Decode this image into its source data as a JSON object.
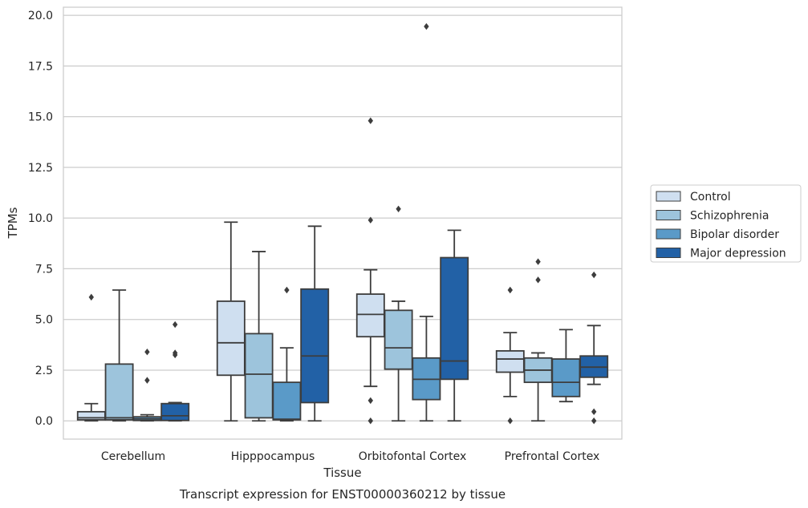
{
  "chart_data": {
    "type": "boxplot",
    "title": "Transcript expression for ENST00000360212 by tissue",
    "xlabel": "Tissue",
    "ylabel": "TPMs",
    "ylim": [
      -0.9,
      20.4
    ],
    "yticks": [
      "0.0",
      "2.5",
      "5.0",
      "7.5",
      "10.0",
      "12.5",
      "15.0",
      "17.5",
      "20.0"
    ],
    "ytick_values": [
      0,
      2.5,
      5,
      7.5,
      10,
      12.5,
      15,
      17.5,
      20
    ],
    "grid": "horizontal",
    "legend_position": "right",
    "categories": [
      "Cerebellum",
      "Hipppocampus",
      "Orbitofontal Cortex",
      "Prefrontal Cortex"
    ],
    "series": [
      {
        "name": "Control",
        "color": "#cfdff0",
        "boxes": [
          {
            "whislo": 0.0,
            "q1": 0.05,
            "med": 0.15,
            "q3": 0.45,
            "whishi": 0.85,
            "fliers": [
              6.1
            ]
          },
          {
            "whislo": 0.0,
            "q1": 2.25,
            "med": 3.85,
            "q3": 5.9,
            "whishi": 9.8,
            "fliers": []
          },
          {
            "whislo": 1.7,
            "q1": 4.15,
            "med": 5.25,
            "q3": 6.25,
            "whishi": 7.45,
            "fliers": [
              14.8,
              9.9,
              1.0,
              0.0
            ]
          },
          {
            "whislo": 1.2,
            "q1": 2.4,
            "med": 3.05,
            "q3": 3.45,
            "whishi": 4.35,
            "fliers": [
              6.45,
              0.0
            ]
          }
        ]
      },
      {
        "name": "Schizophrenia",
        "color": "#9dc4dc",
        "boxes": [
          {
            "whislo": 0.0,
            "q1": 0.05,
            "med": 0.15,
            "q3": 2.8,
            "whishi": 6.45,
            "fliers": []
          },
          {
            "whislo": 0.0,
            "q1": 0.15,
            "med": 2.3,
            "q3": 4.3,
            "whishi": 8.35,
            "fliers": []
          },
          {
            "whislo": 0.0,
            "q1": 2.55,
            "med": 3.6,
            "q3": 5.45,
            "whishi": 5.9,
            "fliers": [
              10.45
            ]
          },
          {
            "whislo": 0.0,
            "q1": 1.9,
            "med": 2.5,
            "q3": 3.1,
            "whishi": 3.35,
            "fliers": [
              7.85,
              6.95
            ]
          }
        ]
      },
      {
        "name": "Bipolar disorder",
        "color": "#5a9ac8",
        "boxes": [
          {
            "whislo": 0.0,
            "q1": 0.02,
            "med": 0.1,
            "q3": 0.2,
            "whishi": 0.3,
            "fliers": [
              3.4,
              2.0
            ]
          },
          {
            "whislo": 0.0,
            "q1": 0.05,
            "med": 0.08,
            "q3": 1.9,
            "whishi": 3.6,
            "fliers": [
              6.45
            ]
          },
          {
            "whislo": 0.0,
            "q1": 1.05,
            "med": 2.05,
            "q3": 3.1,
            "whishi": 5.15,
            "fliers": [
              19.45
            ]
          },
          {
            "whislo": 0.95,
            "q1": 1.2,
            "med": 1.9,
            "q3": 3.05,
            "whishi": 4.5,
            "fliers": []
          }
        ]
      },
      {
        "name": "Major depression",
        "color": "#2261a6",
        "boxes": [
          {
            "whislo": 0.0,
            "q1": 0.02,
            "med": 0.25,
            "q3": 0.85,
            "whishi": 0.9,
            "fliers": [
              4.75,
              3.35,
              3.25
            ]
          },
          {
            "whislo": 0.0,
            "q1": 0.9,
            "med": 3.2,
            "q3": 6.5,
            "whishi": 9.6,
            "fliers": []
          },
          {
            "whislo": 0.0,
            "q1": 2.05,
            "med": 2.95,
            "q3": 8.05,
            "whishi": 9.4,
            "fliers": []
          },
          {
            "whislo": 1.8,
            "q1": 2.15,
            "med": 2.65,
            "q3": 3.2,
            "whishi": 4.7,
            "fliers": [
              7.2,
              0.45,
              0.0
            ]
          }
        ]
      }
    ]
  }
}
